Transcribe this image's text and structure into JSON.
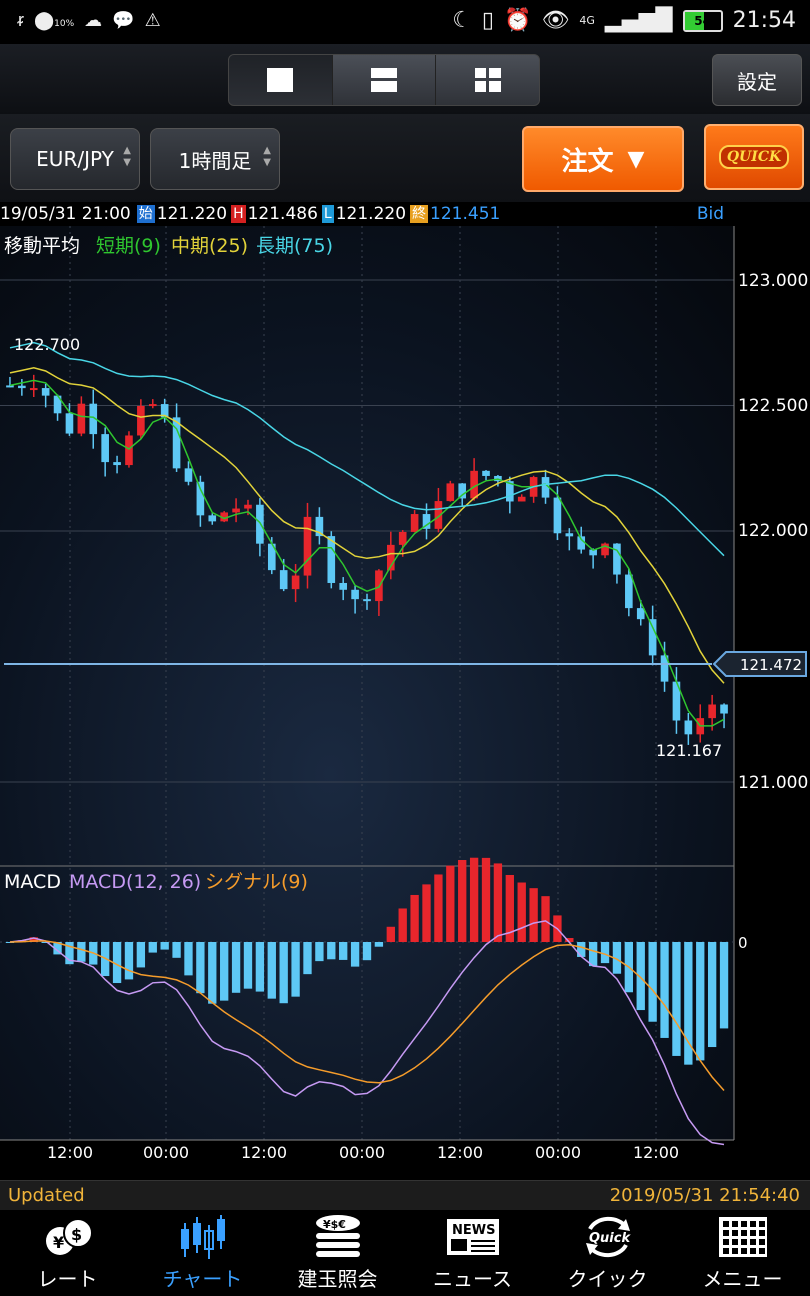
{
  "status_bar": {
    "left_icons": [
      "wifi-icon",
      "data-saver-icon",
      "cloud-icon",
      "chat-icon",
      "warning-icon"
    ],
    "data_label": "10%",
    "network": "4G",
    "battery": "54",
    "time": "21:54"
  },
  "toolbar": {
    "layouts": [
      "single-layout-icon",
      "double-layout-icon",
      "quad-layout-icon"
    ],
    "settings_label": "設定"
  },
  "selectors": {
    "pair": "EUR/JPY",
    "timeframe": "1時間足",
    "order_label": "注文",
    "quick_label": "QUICK"
  },
  "ohlc": {
    "datetime": "19/05/31 21:00",
    "open_tag": "始",
    "open": "121.220",
    "high_tag": "H",
    "high": "121.486",
    "low_tag": "L",
    "low": "121.220",
    "close_tag": "終",
    "close": "121.451",
    "side": "Bid"
  },
  "ma_legend": {
    "title": "移動平均",
    "short": "短期(9)",
    "mid": "中期(25)",
    "long": "長期(75)"
  },
  "price_axis": {
    "labels": [
      "123.000",
      "122.500",
      "122.000",
      "121.000"
    ],
    "current": "121.472",
    "high_marker": "122.700",
    "low_marker": "121.167"
  },
  "macd_legend": {
    "title": "MACD",
    "macd": "MACD(12, 26)",
    "signal": "シグナル(9)",
    "zero": "0"
  },
  "time_axis": [
    "12:00",
    "00:00",
    "12:00",
    "00:00",
    "12:00",
    "00:00",
    "12:00"
  ],
  "updated": {
    "label": "Updated",
    "timestamp": "2019/05/31 21:54:40"
  },
  "nav": [
    {
      "label": "レート",
      "icon": "currency-icon"
    },
    {
      "label": "チャート",
      "icon": "candlestick-icon"
    },
    {
      "label": "建玉照会",
      "icon": "coins-icon"
    },
    {
      "label": "ニュース",
      "icon": "news-icon"
    },
    {
      "label": "クイック",
      "icon": "quick-refresh-icon"
    },
    {
      "label": "メニュー",
      "icon": "menu-grid-icon"
    }
  ],
  "colors": {
    "up": "#e8262c",
    "down": "#5ec8f5",
    "short_ma": "#2fc62f",
    "mid_ma": "#e2d33a",
    "long_ma": "#49d6e6",
    "macd": "#c69af3",
    "signal": "#f59c2b",
    "accent": "#3aa0ff"
  },
  "chart_data": {
    "type": "candlestick",
    "series_mean": [
      122.58,
      122.6,
      122.62,
      122.55,
      122.45,
      122.42,
      122.5,
      122.44,
      122.32,
      122.3,
      122.36,
      122.44,
      122.5,
      122.42,
      122.3,
      122.15,
      122.05,
      122.02,
      122.08,
      122.1,
      122.05,
      121.95,
      121.85,
      121.8,
      121.85,
      122.0,
      121.95,
      121.85,
      121.8,
      121.7,
      121.78,
      121.85,
      121.95,
      122.0,
      122.02,
      122.05,
      122.1,
      122.15,
      122.18,
      122.2,
      122.22,
      122.2,
      122.15,
      122.18,
      122.2,
      122.18,
      122.05,
      121.95,
      121.9,
      121.92,
      122.0,
      121.85,
      121.7,
      121.6,
      121.55,
      121.4,
      121.25,
      121.2,
      121.22,
      121.25,
      121.28
    ],
    "ylim": [
      120.6,
      123.2
    ],
    "price_ticks": [
      123.0,
      122.5,
      122.0,
      121.0
    ],
    "current_price": 121.472,
    "high": 122.7,
    "low": 121.167
  }
}
